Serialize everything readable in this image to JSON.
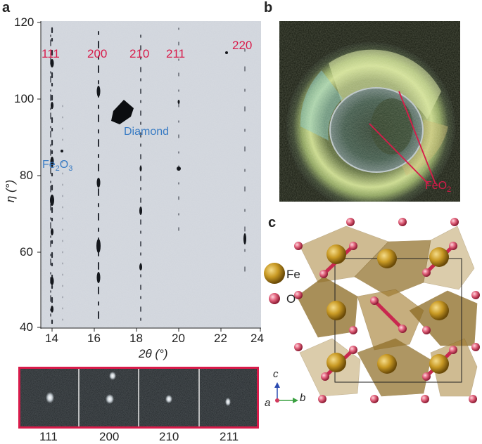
{
  "panels": {
    "a": "a",
    "b": "b",
    "c": "c"
  },
  "panel_a": {
    "y_axis_label": "η (°)",
    "x_axis_label": "2θ (°)",
    "y_ticks": [
      "120",
      "100",
      "80",
      "60",
      "40"
    ],
    "x_ticks": [
      "14",
      "16",
      "18",
      "20",
      "22",
      "24"
    ],
    "reflections": [
      "111",
      "200",
      "210",
      "211",
      "220"
    ],
    "annot_diamond": "Diamond",
    "annot_fe2o3_main": "Fe",
    "annot_fe2o3_sub1": "2",
    "annot_fe2o3_mid": "O",
    "annot_fe2o3_sub2": "3",
    "strip_labels": [
      "111",
      "200",
      "210",
      "211"
    ],
    "frame_color": "#d81b4a"
  },
  "panel_b": {
    "label_main": "FeO",
    "label_sub": "2",
    "line_color": "#d81b4a"
  },
  "panel_c": {
    "legend_fe": "Fe",
    "legend_o": "O",
    "axis_c": "c",
    "axis_a": "a",
    "axis_b": "b",
    "fe_color": "#b8860b",
    "o_color": "#d23a5e",
    "bond_color": "#c8284f"
  }
}
